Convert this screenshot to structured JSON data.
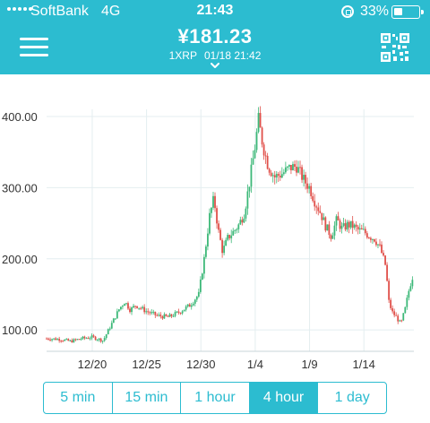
{
  "status_bar": {
    "carrier": "SoftBank",
    "network": "4G",
    "time": "21:43",
    "battery_percent": "33%",
    "battery_level": 0.33
  },
  "header": {
    "price": "¥181.23",
    "pair": "1XRP",
    "timestamp": "01/18 21:42",
    "background": "#2cbcd0",
    "menu_icon": "hamburger-menu-icon",
    "qr_icon": "qr-code-icon",
    "dropdown_icon": "chevron-down-icon"
  },
  "chart_data": {
    "type": "candlestick",
    "ylim": [
      70,
      410
    ],
    "y_ticks": [
      "100.00",
      "200.00",
      "300.00",
      "400.00"
    ],
    "y_tick_values": [
      100,
      200,
      300,
      400
    ],
    "x_ticks": [
      "12/20",
      "12/25",
      "12/30",
      "1/4",
      "1/9",
      "1/14"
    ],
    "x_tick_days": [
      20,
      25,
      30,
      35,
      40,
      45
    ],
    "x_range_days": [
      15.8,
      49.6
    ],
    "up_color": "#3cb878",
    "down_color": "#e0504a",
    "grid": true,
    "close_path": [
      [
        15.8,
        88
      ],
      [
        17,
        87
      ],
      [
        18,
        84
      ],
      [
        19,
        88
      ],
      [
        20,
        90
      ],
      [
        21,
        85
      ],
      [
        21.5,
        100
      ],
      [
        22.5,
        130
      ],
      [
        23,
        140
      ],
      [
        23.5,
        128
      ],
      [
        24,
        135
      ],
      [
        25,
        126
      ],
      [
        26,
        120
      ],
      [
        27,
        118
      ],
      [
        28,
        125
      ],
      [
        29,
        135
      ],
      [
        29.8,
        150
      ],
      [
        30.3,
        200
      ],
      [
        30.8,
        260
      ],
      [
        31.2,
        285
      ],
      [
        31.6,
        240
      ],
      [
        32,
        210
      ],
      [
        32.5,
        230
      ],
      [
        33,
        238
      ],
      [
        33.5,
        248
      ],
      [
        34,
        265
      ],
      [
        34.5,
        310
      ],
      [
        35,
        360
      ],
      [
        35.3,
        395
      ],
      [
        35.7,
        360
      ],
      [
        36.2,
        330
      ],
      [
        36.8,
        315
      ],
      [
        37.5,
        320
      ],
      [
        38.2,
        328
      ],
      [
        38.8,
        330
      ],
      [
        39.5,
        310
      ],
      [
        40,
        300
      ],
      [
        40.5,
        280
      ],
      [
        41,
        265
      ],
      [
        41.5,
        245
      ],
      [
        42,
        232
      ],
      [
        42.5,
        255
      ],
      [
        43,
        242
      ],
      [
        43.5,
        248
      ],
      [
        44,
        246
      ],
      [
        44.5,
        240
      ],
      [
        45,
        238
      ],
      [
        45.5,
        232
      ],
      [
        46,
        228
      ],
      [
        46.5,
        215
      ],
      [
        47,
        190
      ],
      [
        47.3,
        140
      ],
      [
        47.6,
        125
      ],
      [
        48,
        118
      ],
      [
        48.4,
        108
      ],
      [
        48.8,
        130
      ],
      [
        49.2,
        160
      ],
      [
        49.6,
        181
      ]
    ]
  },
  "timeframes": {
    "options": [
      "5 min",
      "15 min",
      "1 hour",
      "4 hour",
      "1 day"
    ],
    "selected": "4 hour"
  }
}
